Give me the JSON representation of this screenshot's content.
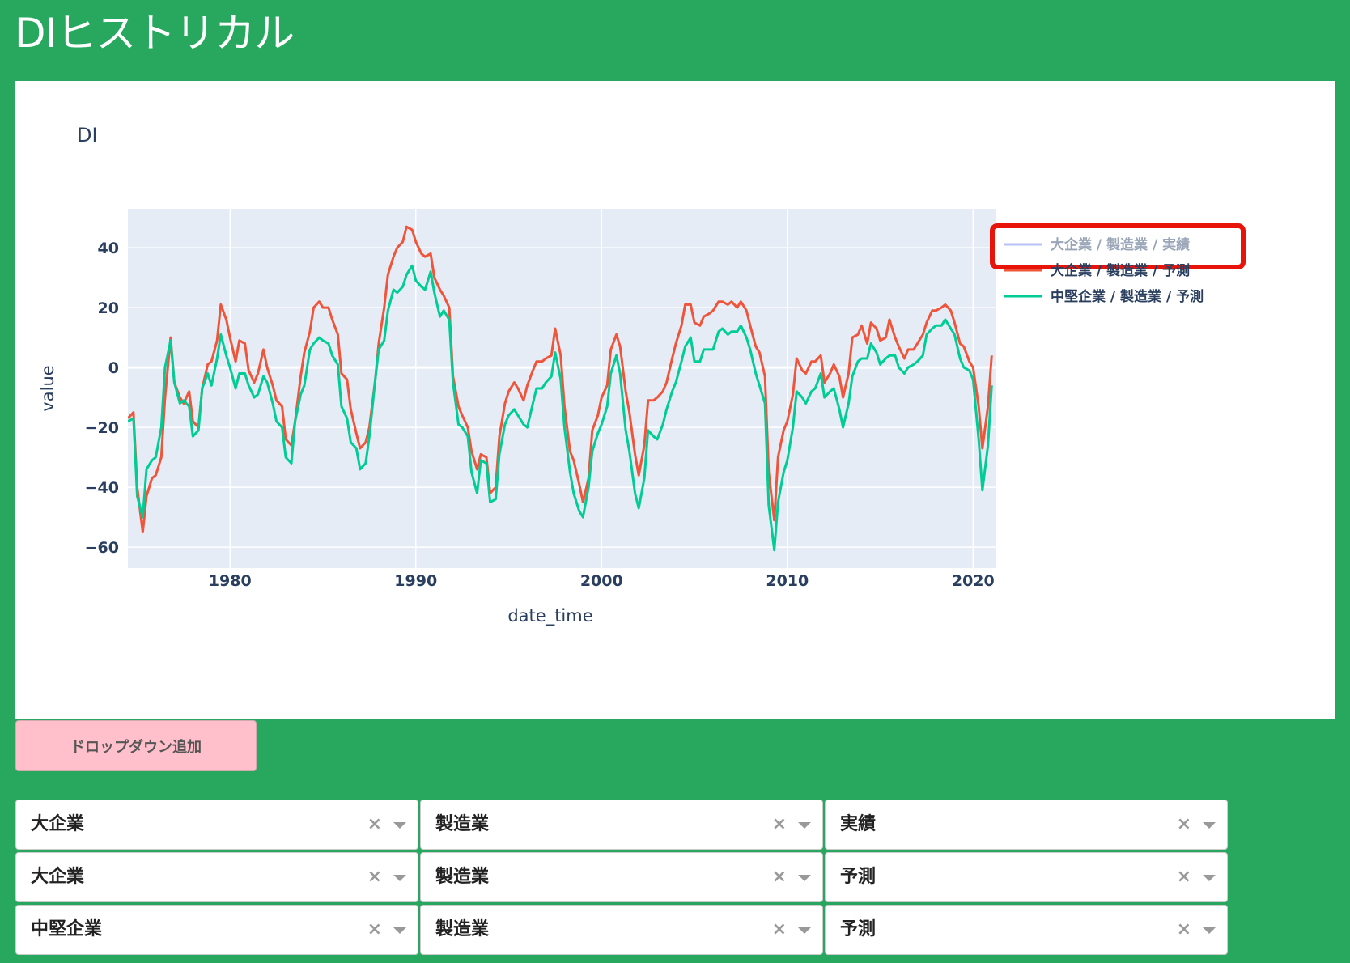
{
  "page": {
    "title": "DIヒストリカル"
  },
  "chart": {
    "title": "DI",
    "xlabel": "date_time",
    "ylabel": "value",
    "legend_title": "name",
    "x_ticks": [
      "1980",
      "1990",
      "2000",
      "2010",
      "2020"
    ],
    "y_ticks": [
      "40",
      "20",
      "0",
      "−20",
      "−40",
      "−60"
    ],
    "legend": [
      {
        "label": "大企業 / 製造業 / 実績",
        "color": "#b9c2f5",
        "hidden": true
      },
      {
        "label": "大企業 / 製造業 / 予測",
        "color": "#ef553b",
        "hidden": false
      },
      {
        "label": "中堅企業 / 製造業 / 予測",
        "color": "#00cc96",
        "hidden": false
      }
    ],
    "colors": {
      "plot_bg": "#e5ecf6",
      "highlight_box": "#e8140a"
    }
  },
  "chart_data": {
    "type": "line",
    "title": "DI",
    "xlabel": "date_time",
    "ylabel": "value",
    "xlim": [
      1974.5,
      2021.25
    ],
    "ylim": [
      -67,
      53
    ],
    "legend_title": "name",
    "legend_position": "right",
    "grid": true,
    "series": [
      {
        "name": "大企業 / 製造業 / 実績",
        "color": "#b9c2f5",
        "visible": false,
        "x": [],
        "y": []
      },
      {
        "name": "大企業 / 製造業 / 予測",
        "color": "#ef553b",
        "x": [
          1974.5,
          1974.8,
          1975.0,
          1975.3,
          1975.5,
          1975.8,
          1976.0,
          1976.3,
          1976.5,
          1976.8,
          1977.0,
          1977.3,
          1977.5,
          1977.8,
          1978.0,
          1978.3,
          1978.5,
          1978.8,
          1979.0,
          1979.3,
          1979.5,
          1979.8,
          1980.0,
          1980.3,
          1980.5,
          1980.8,
          1981.0,
          1981.3,
          1981.5,
          1981.8,
          1982.0,
          1982.3,
          1982.5,
          1982.8,
          1983.0,
          1983.3,
          1983.5,
          1983.8,
          1984.0,
          1984.3,
          1984.5,
          1984.8,
          1985.0,
          1985.3,
          1985.5,
          1985.8,
          1986.0,
          1986.3,
          1986.5,
          1986.8,
          1987.0,
          1987.3,
          1987.5,
          1987.8,
          1988.0,
          1988.3,
          1988.5,
          1988.8,
          1989.0,
          1989.3,
          1989.5,
          1989.8,
          1990.0,
          1990.3,
          1990.5,
          1990.8,
          1991.0,
          1991.3,
          1991.5,
          1991.8,
          1992.0,
          1992.3,
          1992.5,
          1992.8,
          1993.0,
          1993.3,
          1993.5,
          1993.8,
          1994.0,
          1994.3,
          1994.5,
          1994.8,
          1995.0,
          1995.3,
          1995.5,
          1995.8,
          1996.0,
          1996.3,
          1996.5,
          1996.8,
          1997.0,
          1997.3,
          1997.5,
          1997.8,
          1998.0,
          1998.3,
          1998.5,
          1998.8,
          1999.0,
          1999.3,
          1999.5,
          1999.8,
          2000.0,
          2000.3,
          2000.5,
          2000.8,
          2001.0,
          2001.3,
          2001.5,
          2001.8,
          2002.0,
          2002.3,
          2002.5,
          2002.8,
          2003.0,
          2003.3,
          2003.5,
          2003.8,
          2004.0,
          2004.3,
          2004.5,
          2004.8,
          2005.0,
          2005.3,
          2005.5,
          2005.8,
          2006.0,
          2006.3,
          2006.5,
          2006.8,
          2007.0,
          2007.3,
          2007.5,
          2007.8,
          2008.0,
          2008.3,
          2008.5,
          2008.8,
          2009.0,
          2009.3,
          2009.5,
          2009.8,
          2010.0,
          2010.3,
          2010.5,
          2010.8,
          2011.0,
          2011.3,
          2011.5,
          2011.8,
          2012.0,
          2012.3,
          2012.5,
          2012.8,
          2013.0,
          2013.3,
          2013.5,
          2013.8,
          2014.0,
          2014.3,
          2014.5,
          2014.8,
          2015.0,
          2015.3,
          2015.5,
          2015.8,
          2016.0,
          2016.3,
          2016.5,
          2016.8,
          2017.0,
          2017.3,
          2017.5,
          2017.8,
          2018.0,
          2018.3,
          2018.5,
          2018.8,
          2019.0,
          2019.3,
          2019.5,
          2019.8,
          2020.0,
          2020.3,
          2020.5,
          2020.8,
          2021.0
        ],
        "y": [
          -17,
          -15,
          -40,
          -55,
          -43,
          -37,
          -36,
          -30,
          -10,
          10,
          -5,
          -10,
          -12,
          -8,
          -18,
          -20,
          -7,
          1,
          2,
          9,
          21,
          16,
          10,
          2,
          9,
          8,
          -1,
          -5,
          -2,
          6,
          0,
          -6,
          -11,
          -13,
          -24,
          -26,
          -18,
          -3,
          5,
          12,
          20,
          22,
          20,
          20,
          16,
          11,
          -2,
          -4,
          -14,
          -22,
          -27,
          -25,
          -20,
          -5,
          8,
          20,
          31,
          37,
          40,
          42,
          47,
          46,
          42,
          38,
          37,
          38,
          30,
          26,
          24,
          20,
          -3,
          -13,
          -16,
          -20,
          -28,
          -34,
          -29,
          -30,
          -42,
          -40,
          -23,
          -12,
          -8,
          -5,
          -7,
          -11,
          -6,
          -1,
          2,
          2,
          3,
          4,
          13,
          4,
          -13,
          -28,
          -31,
          -39,
          -45,
          -37,
          -21,
          -16,
          -10,
          -6,
          6,
          11,
          7,
          -8,
          -15,
          -29,
          -36,
          -26,
          -11,
          -11,
          -10,
          -8,
          -5,
          3,
          8,
          14,
          21,
          21,
          15,
          14,
          17,
          18,
          19,
          22,
          22,
          21,
          22,
          20,
          22,
          19,
          14,
          7,
          5,
          -3,
          -35,
          -51,
          -30,
          -21,
          -18,
          -9,
          3,
          -1,
          -2,
          2,
          2,
          4,
          -5,
          -2,
          1,
          -3,
          -10,
          -2,
          10,
          11,
          14,
          8,
          15,
          13,
          9,
          10,
          16,
          10,
          7,
          3,
          6,
          6,
          8,
          11,
          15,
          19,
          19,
          20,
          21,
          19,
          15,
          8,
          7,
          2,
          0,
          -13,
          -27,
          -13,
          4
        ]
      },
      {
        "name": "中堅企業 / 製造業 / 予測",
        "color": "#00cc96",
        "x": [
          1974.5,
          1974.8,
          1975.0,
          1975.3,
          1975.5,
          1975.8,
          1976.0,
          1976.3,
          1976.5,
          1976.8,
          1977.0,
          1977.3,
          1977.5,
          1977.8,
          1978.0,
          1978.3,
          1978.5,
          1978.8,
          1979.0,
          1979.3,
          1979.5,
          1979.8,
          1980.0,
          1980.3,
          1980.5,
          1980.8,
          1981.0,
          1981.3,
          1981.5,
          1981.8,
          1982.0,
          1982.3,
          1982.5,
          1982.8,
          1983.0,
          1983.3,
          1983.5,
          1983.8,
          1984.0,
          1984.3,
          1984.5,
          1984.8,
          1985.0,
          1985.3,
          1985.5,
          1985.8,
          1986.0,
          1986.3,
          1986.5,
          1986.8,
          1987.0,
          1987.3,
          1987.5,
          1987.8,
          1988.0,
          1988.3,
          1988.5,
          1988.8,
          1989.0,
          1989.3,
          1989.5,
          1989.8,
          1990.0,
          1990.3,
          1990.5,
          1990.8,
          1991.0,
          1991.3,
          1991.5,
          1991.8,
          1992.0,
          1992.3,
          1992.5,
          1992.8,
          1993.0,
          1993.3,
          1993.5,
          1993.8,
          1994.0,
          1994.3,
          1994.5,
          1994.8,
          1995.0,
          1995.3,
          1995.5,
          1995.8,
          1996.0,
          1996.3,
          1996.5,
          1996.8,
          1997.0,
          1997.3,
          1997.5,
          1997.8,
          1998.0,
          1998.3,
          1998.5,
          1998.8,
          1999.0,
          1999.3,
          1999.5,
          1999.8,
          2000.0,
          2000.3,
          2000.5,
          2000.8,
          2001.0,
          2001.3,
          2001.5,
          2001.8,
          2002.0,
          2002.3,
          2002.5,
          2002.8,
          2003.0,
          2003.3,
          2003.5,
          2003.8,
          2004.0,
          2004.3,
          2004.5,
          2004.8,
          2005.0,
          2005.3,
          2005.5,
          2005.8,
          2006.0,
          2006.3,
          2006.5,
          2006.8,
          2007.0,
          2007.3,
          2007.5,
          2007.8,
          2008.0,
          2008.3,
          2008.5,
          2008.8,
          2009.0,
          2009.3,
          2009.5,
          2009.8,
          2010.0,
          2010.3,
          2010.5,
          2010.8,
          2011.0,
          2011.3,
          2011.5,
          2011.8,
          2012.0,
          2012.3,
          2012.5,
          2012.8,
          2013.0,
          2013.3,
          2013.5,
          2013.8,
          2014.0,
          2014.3,
          2014.5,
          2014.8,
          2015.0,
          2015.3,
          2015.5,
          2015.8,
          2016.0,
          2016.3,
          2016.5,
          2016.8,
          2017.0,
          2017.3,
          2017.5,
          2017.8,
          2018.0,
          2018.3,
          2018.5,
          2018.8,
          2019.0,
          2019.3,
          2019.5,
          2019.8,
          2020.0,
          2020.3,
          2020.5,
          2020.8,
          2021.0
        ],
        "y": [
          -18,
          -17,
          -43,
          -50,
          -34,
          -31,
          -30,
          -20,
          0,
          9,
          -5,
          -12,
          -11,
          -13,
          -23,
          -21,
          -7,
          -2,
          -6,
          3,
          11,
          4,
          0,
          -7,
          -2,
          -2,
          -6,
          -10,
          -9,
          -3,
          -5,
          -12,
          -18,
          -20,
          -30,
          -32,
          -18,
          -9,
          -6,
          6,
          8,
          10,
          9,
          8,
          4,
          1,
          -13,
          -17,
          -25,
          -27,
          -34,
          -32,
          -23,
          -5,
          6,
          9,
          19,
          26,
          25,
          27,
          31,
          34,
          29,
          27,
          26,
          32,
          25,
          17,
          19,
          16,
          -5,
          -19,
          -20,
          -23,
          -35,
          -42,
          -31,
          -32,
          -45,
          -44,
          -29,
          -19,
          -16,
          -14,
          -16,
          -19,
          -20,
          -12,
          -7,
          -7,
          -5,
          -3,
          5,
          -4,
          -20,
          -35,
          -42,
          -48,
          -50,
          -40,
          -28,
          -22,
          -19,
          -13,
          -2,
          4,
          -2,
          -21,
          -28,
          -42,
          -47,
          -37,
          -21,
          -23,
          -24,
          -19,
          -14,
          -8,
          -5,
          2,
          7,
          10,
          2,
          2,
          6,
          6,
          6,
          12,
          13,
          11,
          12,
          12,
          14,
          10,
          6,
          -2,
          -6,
          -12,
          -46,
          -61,
          -45,
          -35,
          -31,
          -20,
          -8,
          -10,
          -12,
          -8,
          -7,
          -2,
          -10,
          -8,
          -7,
          -14,
          -20,
          -12,
          -3,
          2,
          3,
          3,
          8,
          5,
          1,
          3,
          4,
          4,
          0,
          -2,
          0,
          1,
          2,
          4,
          11,
          13,
          14,
          14,
          16,
          13,
          11,
          3,
          0,
          -1,
          -4,
          -24,
          -41,
          -26,
          -6
        ]
      }
    ]
  },
  "add_button": {
    "label": "ドロップダウン追加"
  },
  "dropdowns": [
    {
      "company": "大企業",
      "industry": "製造業",
      "kind": "実績"
    },
    {
      "company": "大企業",
      "industry": "製造業",
      "kind": "予測"
    },
    {
      "company": "中堅企業",
      "industry": "製造業",
      "kind": "予測"
    }
  ],
  "icons": {
    "clear": "×",
    "clear_name": "clear-icon",
    "arrow_name": "chevron-down-icon"
  }
}
